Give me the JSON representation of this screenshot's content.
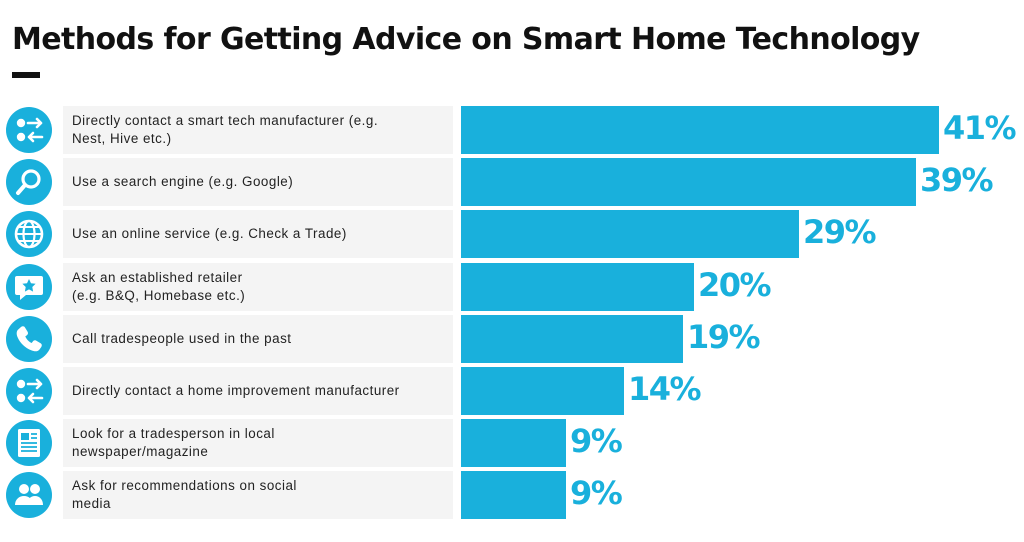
{
  "title": "Methods for Getting Advice on Smart Home Technology",
  "colors": {
    "accent": "#19b0dc",
    "label_bg": "#f4f4f4",
    "text": "#222222"
  },
  "chart_data": {
    "type": "bar",
    "orientation": "horizontal",
    "title": "Methods for Getting Advice on Smart Home Technology",
    "xlabel": "",
    "ylabel": "",
    "xlim": [
      0,
      41
    ],
    "grid": false,
    "value_suffix": "%",
    "categories": [
      "Directly contact a smart tech manufacturer (e.g.\nNest, Hive etc.)",
      "Use a search engine (e.g. Google)",
      "Use an online service (e.g. Check a Trade)",
      "Ask an established retailer\n(e.g. B&Q, Homebase etc.)",
      "Call tradespeople used in the past",
      "Directly contact a home improvement manufacturer",
      "Look for a tradesperson in local\nnewspaper/magazine",
      "Ask for recommendations on social\nmedia"
    ],
    "values": [
      41,
      39,
      29,
      20,
      19,
      14,
      9,
      9
    ],
    "value_labels": [
      "41%",
      "39%",
      "29%",
      "20%",
      "19%",
      "14%",
      "9%",
      "9%"
    ],
    "icons": [
      "transfer-icon",
      "search-icon",
      "globe-icon",
      "chat-star-icon",
      "phone-icon",
      "transfer-icon",
      "newspaper-icon",
      "people-icon"
    ]
  }
}
